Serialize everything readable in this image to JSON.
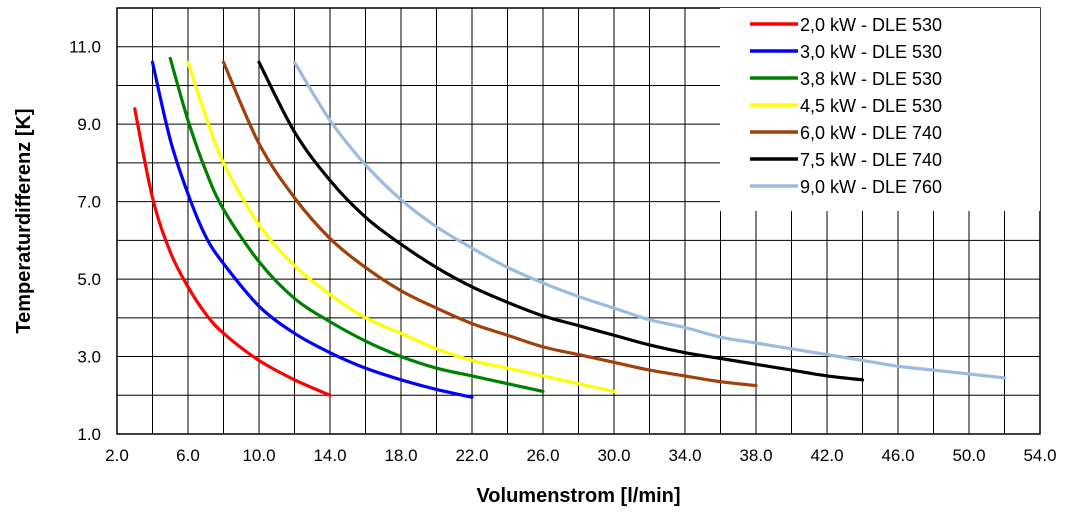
{
  "chart_data": {
    "type": "line",
    "xlabel": "Volumenstrom [l/min]",
    "ylabel": "Temperaturdifferenz [K]",
    "xlim": [
      2.0,
      54.0
    ],
    "ylim": [
      1.0,
      12.0
    ],
    "grid": true,
    "legend_position": "top-right",
    "x_ticks": [
      "2.0",
      "6.0",
      "10.0",
      "14.0",
      "18.0",
      "22.0",
      "26.0",
      "30.0",
      "34.0",
      "38.0",
      "42.0",
      "46.0",
      "50.0",
      "54.0"
    ],
    "y_ticks": [
      "1.0",
      "3.0",
      "5.0",
      "7.0",
      "9.0",
      "11.0"
    ],
    "series": [
      {
        "name": "2,0 kW - DLE 530",
        "color": "#ff0000",
        "x": [
          3.0,
          4.0,
          5.0,
          6.0,
          7.0,
          8.0,
          10.0,
          12.0,
          14.0
        ],
        "y": [
          9.4,
          7.1,
          5.7,
          4.8,
          4.1,
          3.6,
          2.9,
          2.4,
          2.0
        ]
      },
      {
        "name": "3,0 kW - DLE 530",
        "color": "#0000ff",
        "x": [
          4.0,
          5.0,
          6.0,
          7.0,
          8.0,
          10.0,
          12.0,
          14.0,
          16.0,
          18.0,
          20.0,
          22.0
        ],
        "y": [
          10.6,
          8.6,
          7.2,
          6.1,
          5.4,
          4.3,
          3.6,
          3.1,
          2.7,
          2.4,
          2.15,
          1.95
        ]
      },
      {
        "name": "3,8 kW - DLE 530",
        "color": "#008000",
        "x": [
          5.0,
          6.0,
          7.0,
          8.0,
          10.0,
          12.0,
          14.0,
          16.0,
          18.0,
          20.0,
          22.0,
          24.0,
          26.0
        ],
        "y": [
          10.7,
          9.1,
          7.8,
          6.8,
          5.45,
          4.5,
          3.9,
          3.4,
          3.0,
          2.7,
          2.5,
          2.3,
          2.1
        ]
      },
      {
        "name": "4,5 kW - DLE 530",
        "color": "#ffff00",
        "x": [
          6.0,
          7.0,
          8.0,
          10.0,
          12.0,
          14.0,
          16.0,
          18.0,
          20.0,
          22.0,
          24.0,
          26.0,
          28.0,
          30.0
        ],
        "y": [
          10.6,
          9.2,
          8.0,
          6.4,
          5.35,
          4.6,
          4.0,
          3.6,
          3.2,
          2.9,
          2.7,
          2.5,
          2.3,
          2.1
        ]
      },
      {
        "name": "6,0 kW - DLE 740",
        "color": "#a0400a",
        "x": [
          8.0,
          10.0,
          12.0,
          14.0,
          16.0,
          18.0,
          20.0,
          22.0,
          24.0,
          26.0,
          28.0,
          30.0,
          32.0,
          34.0,
          36.0,
          38.0
        ],
        "y": [
          10.6,
          8.5,
          7.1,
          6.05,
          5.3,
          4.7,
          4.25,
          3.85,
          3.55,
          3.25,
          3.05,
          2.85,
          2.65,
          2.5,
          2.35,
          2.25
        ]
      },
      {
        "name": "7,5 kW - DLE 740",
        "color": "#000000",
        "x": [
          10.0,
          12.0,
          14.0,
          16.0,
          18.0,
          20.0,
          22.0,
          24.0,
          26.0,
          28.0,
          30.0,
          32.0,
          34.0,
          36.0,
          38.0,
          40.0,
          42.0,
          44.0
        ],
        "y": [
          10.6,
          8.8,
          7.55,
          6.6,
          5.9,
          5.3,
          4.8,
          4.4,
          4.05,
          3.8,
          3.55,
          3.3,
          3.1,
          2.95,
          2.8,
          2.65,
          2.5,
          2.4
        ]
      },
      {
        "name": "9,0 kW - DLE 760",
        "color": "#9bbbdf",
        "x": [
          12.0,
          14.0,
          16.0,
          18.0,
          20.0,
          22.0,
          24.0,
          26.0,
          28.0,
          30.0,
          32.0,
          34.0,
          36.0,
          38.0,
          40.0,
          42.0,
          44.0,
          46.0,
          48.0,
          50.0,
          52.0
        ],
        "y": [
          10.6,
          9.1,
          7.95,
          7.05,
          6.35,
          5.8,
          5.3,
          4.9,
          4.55,
          4.25,
          3.95,
          3.75,
          3.5,
          3.35,
          3.2,
          3.05,
          2.9,
          2.75,
          2.65,
          2.55,
          2.45
        ]
      }
    ]
  }
}
